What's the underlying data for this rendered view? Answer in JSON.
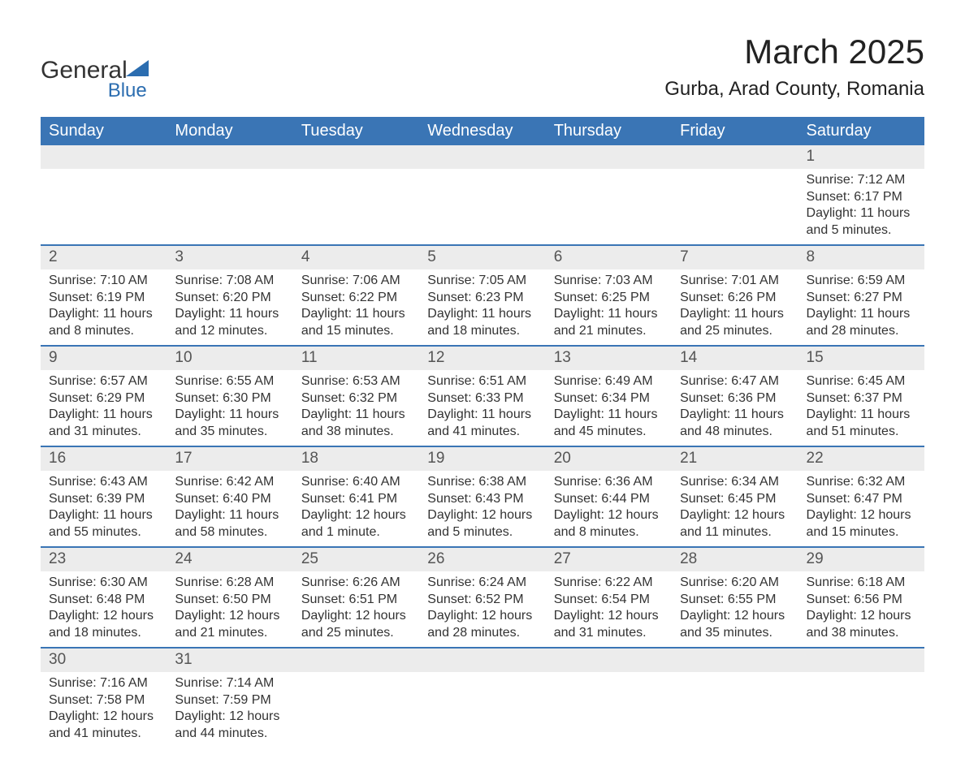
{
  "logo": {
    "text1": "General",
    "text2": "Blue"
  },
  "title": "March 2025",
  "subtitle": "Gurba, Arad County, Romania",
  "colors": {
    "header_bg": "#3a75b5",
    "header_text": "#ffffff",
    "daynum_bg": "#ececec",
    "week_border": "#3a75b5",
    "logo_blue": "#2b6db0",
    "body_text": "#333333",
    "daynum_text": "#555555",
    "page_bg": "#ffffff"
  },
  "typography": {
    "title_fontsize": 42,
    "subtitle_fontsize": 24,
    "weekday_fontsize": 20,
    "daynum_fontsize": 19,
    "details_fontsize": 16
  },
  "weekdays": [
    "Sunday",
    "Monday",
    "Tuesday",
    "Wednesday",
    "Thursday",
    "Friday",
    "Saturday"
  ],
  "labels": {
    "sunrise": "Sunrise:",
    "sunset": "Sunset:",
    "daylight": "Daylight:"
  },
  "weeks": [
    [
      null,
      null,
      null,
      null,
      null,
      null,
      {
        "n": "1",
        "sunrise": "7:12 AM",
        "sunset": "6:17 PM",
        "daylight": "11 hours and 5 minutes."
      }
    ],
    [
      {
        "n": "2",
        "sunrise": "7:10 AM",
        "sunset": "6:19 PM",
        "daylight": "11 hours and 8 minutes."
      },
      {
        "n": "3",
        "sunrise": "7:08 AM",
        "sunset": "6:20 PM",
        "daylight": "11 hours and 12 minutes."
      },
      {
        "n": "4",
        "sunrise": "7:06 AM",
        "sunset": "6:22 PM",
        "daylight": "11 hours and 15 minutes."
      },
      {
        "n": "5",
        "sunrise": "7:05 AM",
        "sunset": "6:23 PM",
        "daylight": "11 hours and 18 minutes."
      },
      {
        "n": "6",
        "sunrise": "7:03 AM",
        "sunset": "6:25 PM",
        "daylight": "11 hours and 21 minutes."
      },
      {
        "n": "7",
        "sunrise": "7:01 AM",
        "sunset": "6:26 PM",
        "daylight": "11 hours and 25 minutes."
      },
      {
        "n": "8",
        "sunrise": "6:59 AM",
        "sunset": "6:27 PM",
        "daylight": "11 hours and 28 minutes."
      }
    ],
    [
      {
        "n": "9",
        "sunrise": "6:57 AM",
        "sunset": "6:29 PM",
        "daylight": "11 hours and 31 minutes."
      },
      {
        "n": "10",
        "sunrise": "6:55 AM",
        "sunset": "6:30 PM",
        "daylight": "11 hours and 35 minutes."
      },
      {
        "n": "11",
        "sunrise": "6:53 AM",
        "sunset": "6:32 PM",
        "daylight": "11 hours and 38 minutes."
      },
      {
        "n": "12",
        "sunrise": "6:51 AM",
        "sunset": "6:33 PM",
        "daylight": "11 hours and 41 minutes."
      },
      {
        "n": "13",
        "sunrise": "6:49 AM",
        "sunset": "6:34 PM",
        "daylight": "11 hours and 45 minutes."
      },
      {
        "n": "14",
        "sunrise": "6:47 AM",
        "sunset": "6:36 PM",
        "daylight": "11 hours and 48 minutes."
      },
      {
        "n": "15",
        "sunrise": "6:45 AM",
        "sunset": "6:37 PM",
        "daylight": "11 hours and 51 minutes."
      }
    ],
    [
      {
        "n": "16",
        "sunrise": "6:43 AM",
        "sunset": "6:39 PM",
        "daylight": "11 hours and 55 minutes."
      },
      {
        "n": "17",
        "sunrise": "6:42 AM",
        "sunset": "6:40 PM",
        "daylight": "11 hours and 58 minutes."
      },
      {
        "n": "18",
        "sunrise": "6:40 AM",
        "sunset": "6:41 PM",
        "daylight": "12 hours and 1 minute."
      },
      {
        "n": "19",
        "sunrise": "6:38 AM",
        "sunset": "6:43 PM",
        "daylight": "12 hours and 5 minutes."
      },
      {
        "n": "20",
        "sunrise": "6:36 AM",
        "sunset": "6:44 PM",
        "daylight": "12 hours and 8 minutes."
      },
      {
        "n": "21",
        "sunrise": "6:34 AM",
        "sunset": "6:45 PM",
        "daylight": "12 hours and 11 minutes."
      },
      {
        "n": "22",
        "sunrise": "6:32 AM",
        "sunset": "6:47 PM",
        "daylight": "12 hours and 15 minutes."
      }
    ],
    [
      {
        "n": "23",
        "sunrise": "6:30 AM",
        "sunset": "6:48 PM",
        "daylight": "12 hours and 18 minutes."
      },
      {
        "n": "24",
        "sunrise": "6:28 AM",
        "sunset": "6:50 PM",
        "daylight": "12 hours and 21 minutes."
      },
      {
        "n": "25",
        "sunrise": "6:26 AM",
        "sunset": "6:51 PM",
        "daylight": "12 hours and 25 minutes."
      },
      {
        "n": "26",
        "sunrise": "6:24 AM",
        "sunset": "6:52 PM",
        "daylight": "12 hours and 28 minutes."
      },
      {
        "n": "27",
        "sunrise": "6:22 AM",
        "sunset": "6:54 PM",
        "daylight": "12 hours and 31 minutes."
      },
      {
        "n": "28",
        "sunrise": "6:20 AM",
        "sunset": "6:55 PM",
        "daylight": "12 hours and 35 minutes."
      },
      {
        "n": "29",
        "sunrise": "6:18 AM",
        "sunset": "6:56 PM",
        "daylight": "12 hours and 38 minutes."
      }
    ],
    [
      {
        "n": "30",
        "sunrise": "7:16 AM",
        "sunset": "7:58 PM",
        "daylight": "12 hours and 41 minutes."
      },
      {
        "n": "31",
        "sunrise": "7:14 AM",
        "sunset": "7:59 PM",
        "daylight": "12 hours and 44 minutes."
      },
      null,
      null,
      null,
      null,
      null
    ]
  ]
}
